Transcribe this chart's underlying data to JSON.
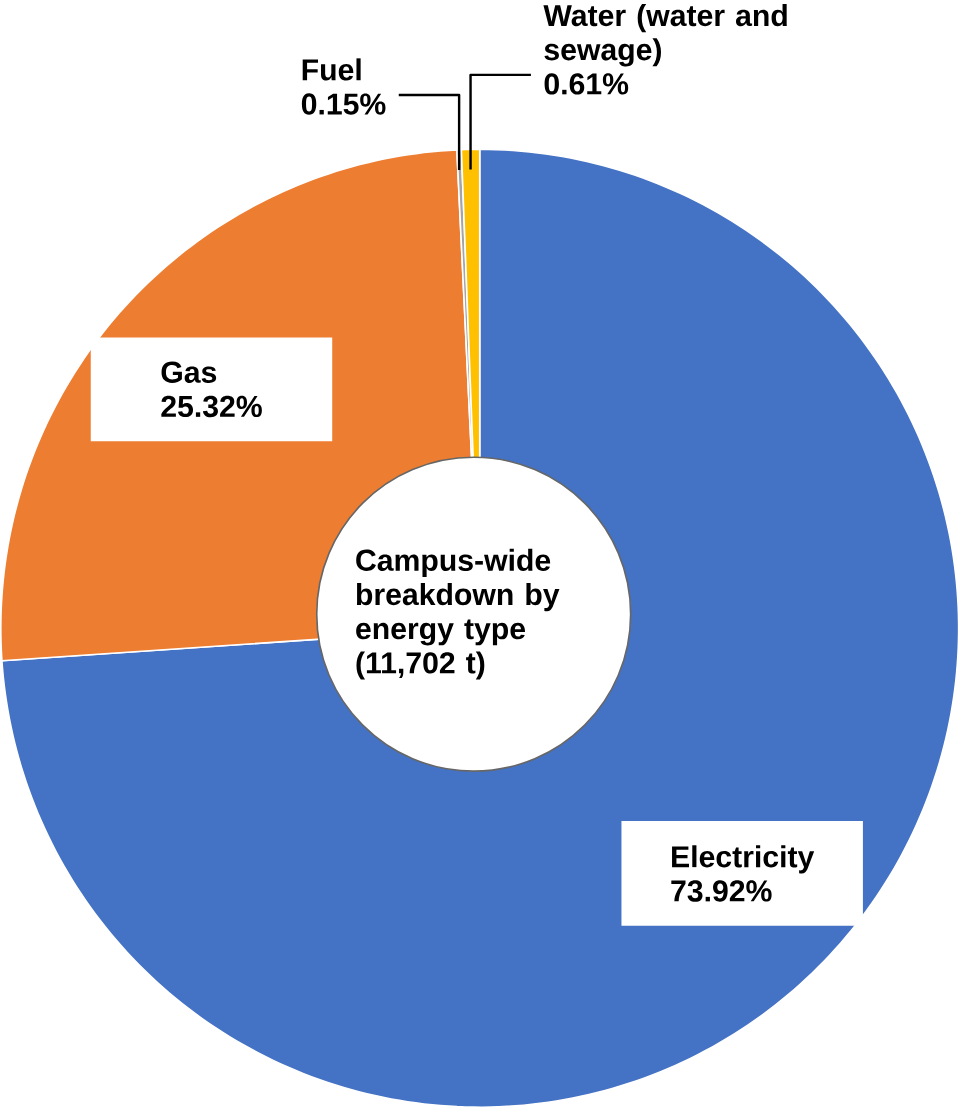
{
  "chart_data": {
    "type": "pie",
    "title": "Campus-wide breakdown by energy type (11,702 t)",
    "categories": [
      "Electricity",
      "Gas",
      "Fuel",
      "Water (water and sewage)"
    ],
    "values": [
      73.92,
      25.32,
      0.15,
      0.61
    ],
    "colors": [
      "#4472c4",
      "#ed7d31",
      "#a5a5a5",
      "#ffc000"
    ],
    "value_labels": [
      "73.92%",
      "25.32%",
      "0.15%",
      "0.61%"
    ]
  }
}
